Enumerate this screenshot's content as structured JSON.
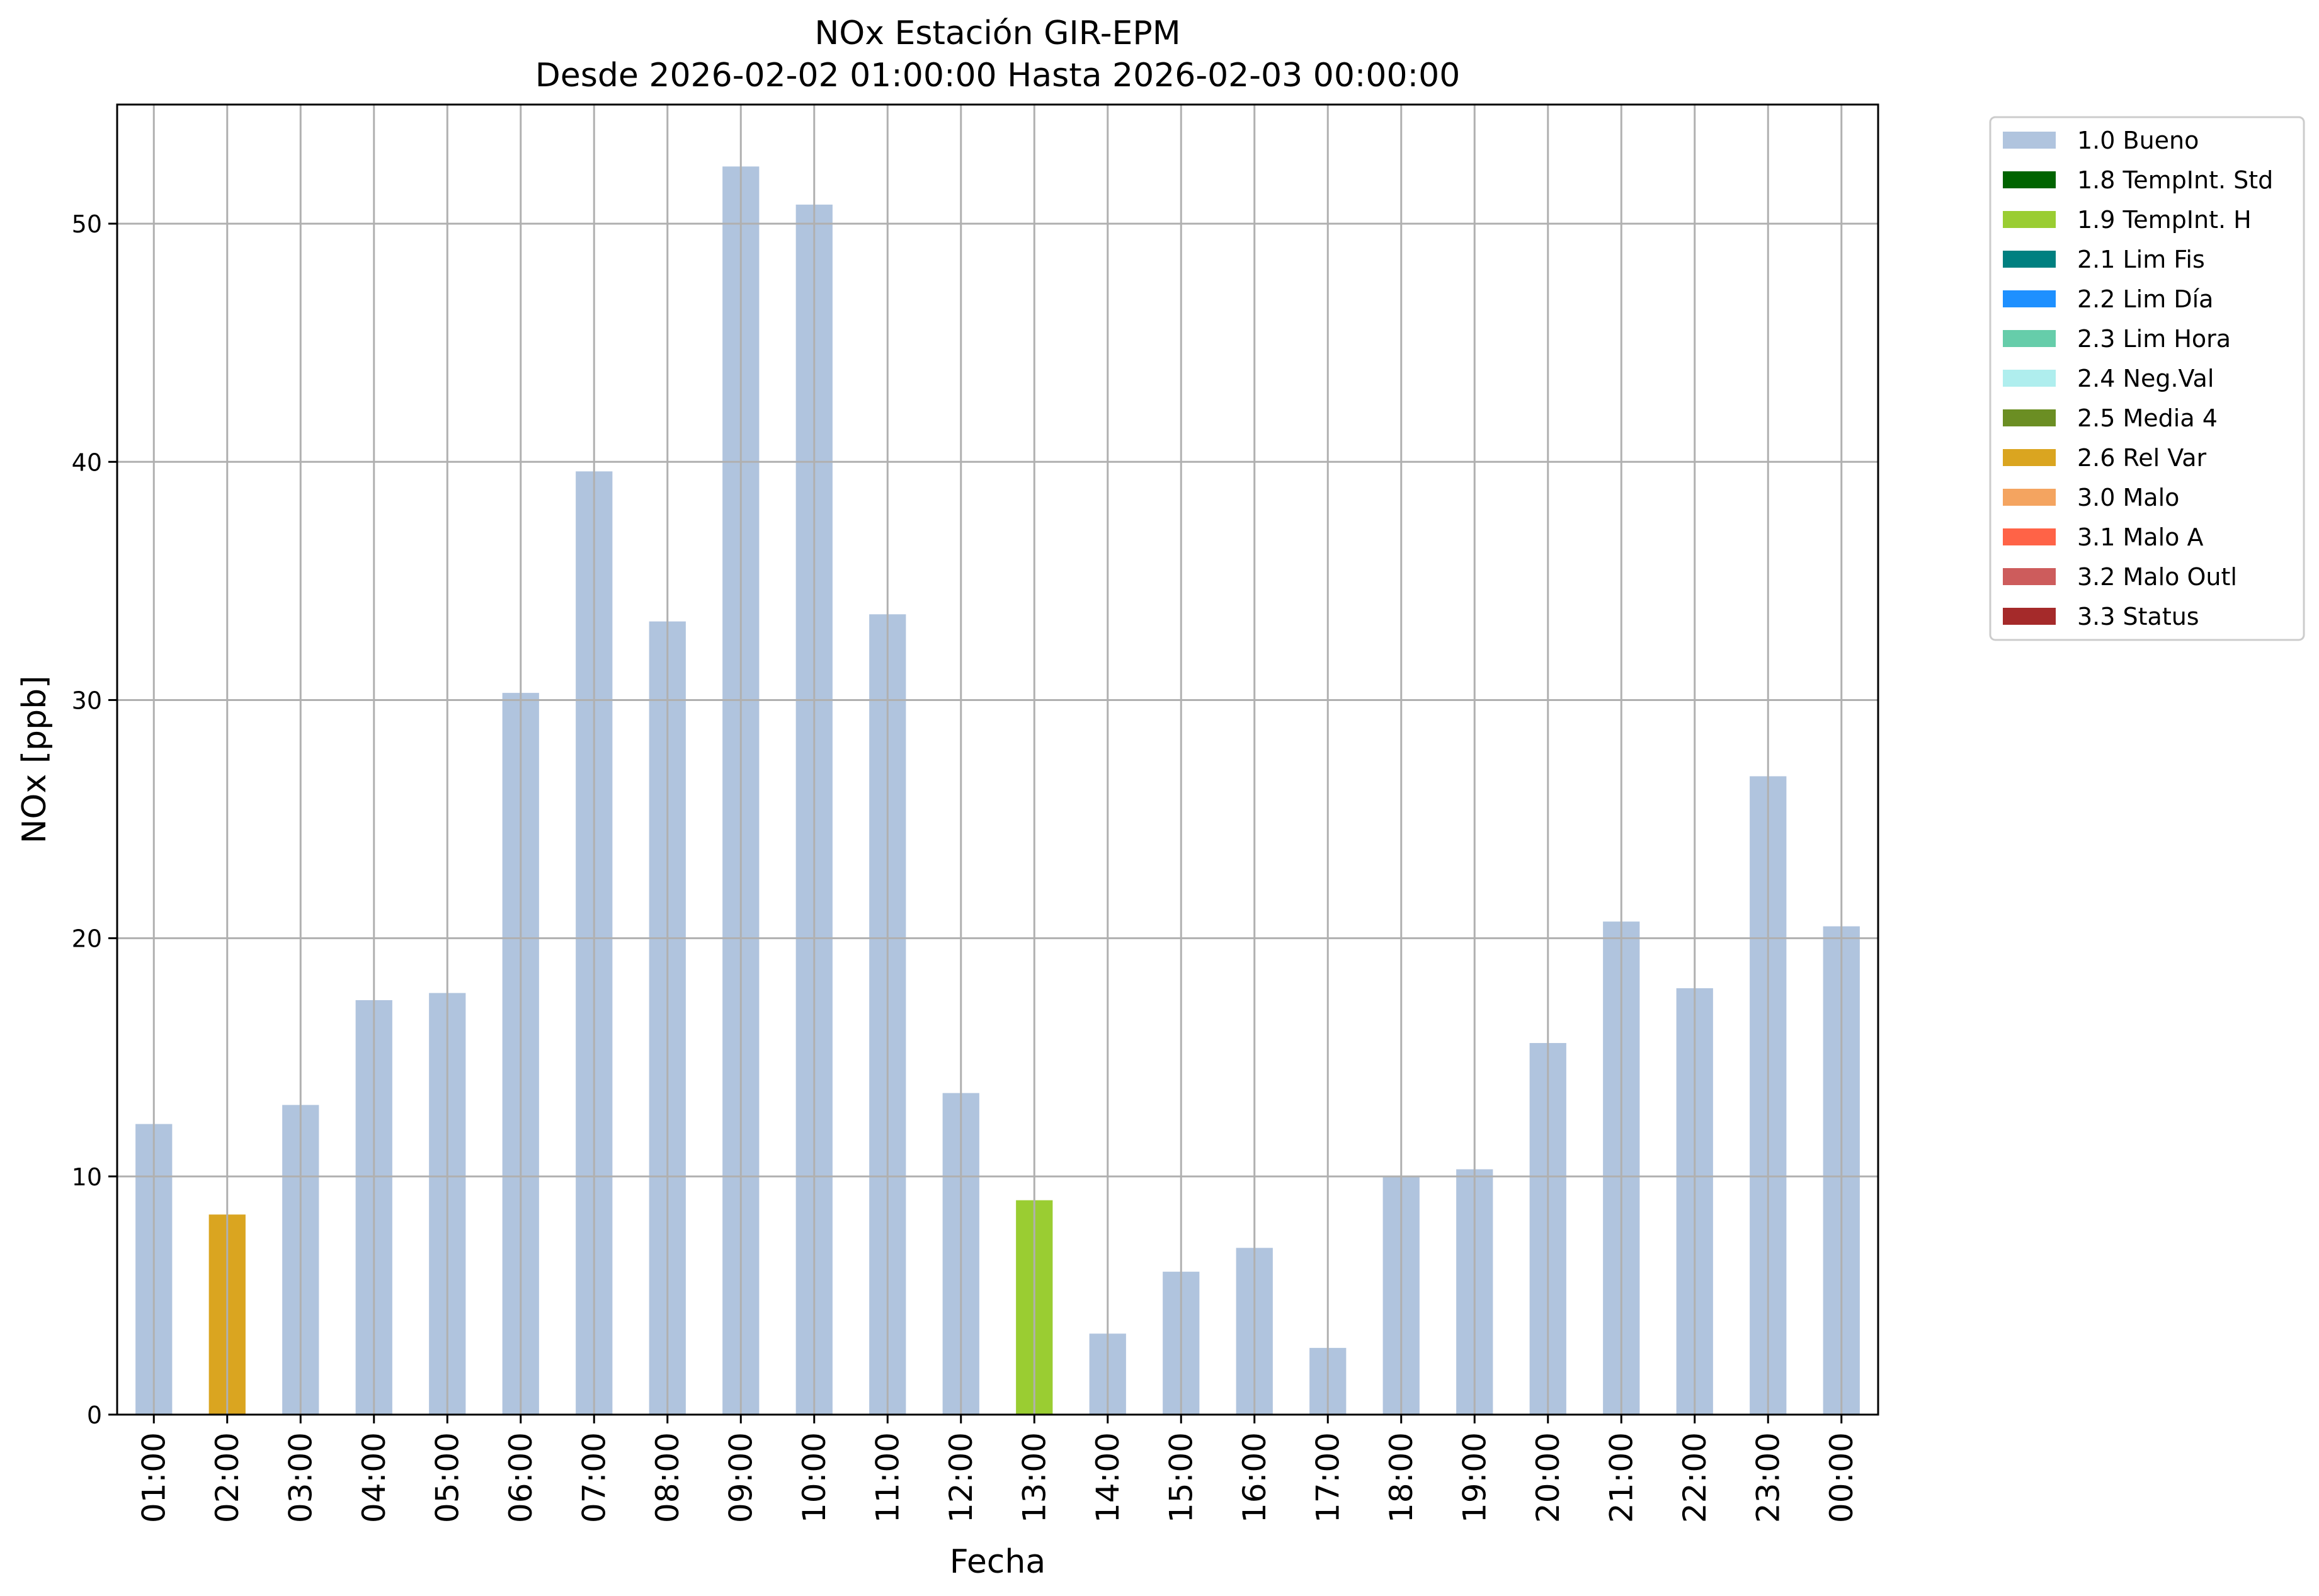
{
  "chart_data": {
    "type": "bar",
    "title": "NOx Estación GIR-EPM",
    "subtitle": "Desde 2026-02-02 01:00:00 Hasta 2026-02-03 00:00:00",
    "xlabel": "Fecha",
    "ylabel": "NOx [ppb]",
    "ylim": [
      0,
      55
    ],
    "yticks": [
      "0",
      "10",
      "20",
      "30",
      "40",
      "50"
    ],
    "grid": true,
    "legend_position": "outside-top-right",
    "categories": [
      "01:00",
      "02:00",
      "03:00",
      "04:00",
      "05:00",
      "06:00",
      "07:00",
      "08:00",
      "09:00",
      "10:00",
      "11:00",
      "12:00",
      "13:00",
      "14:00",
      "15:00",
      "16:00",
      "17:00",
      "18:00",
      "19:00",
      "20:00",
      "21:00",
      "22:00",
      "23:00",
      "00:00"
    ],
    "values": [
      12.2,
      8.4,
      13.0,
      17.4,
      17.7,
      30.3,
      39.6,
      33.3,
      52.4,
      50.8,
      33.6,
      13.5,
      9.0,
      3.4,
      6.0,
      7.0,
      2.8,
      10.0,
      10.3,
      15.6,
      20.7,
      17.9,
      26.8,
      20.5
    ],
    "flags": [
      "1.0 Bueno",
      "2.6 Rel Var",
      "1.0 Bueno",
      "1.0 Bueno",
      "1.0 Bueno",
      "1.0 Bueno",
      "1.0 Bueno",
      "1.0 Bueno",
      "1.0 Bueno",
      "1.0 Bueno",
      "1.0 Bueno",
      "1.0 Bueno",
      "1.9 TempInt. H",
      "1.0 Bueno",
      "1.0 Bueno",
      "1.0 Bueno",
      "1.0 Bueno",
      "1.0 Bueno",
      "1.0 Bueno",
      "1.0 Bueno",
      "1.0 Bueno",
      "1.0 Bueno",
      "1.0 Bueno",
      "1.0 Bueno"
    ],
    "legend": [
      {
        "label": "1.0 Bueno",
        "color": "#b0c4de"
      },
      {
        "label": "1.8 TempInt. Std",
        "color": "#006400"
      },
      {
        "label": "1.9 TempInt. H",
        "color": "#9acd32"
      },
      {
        "label": "2.1 Lim Fis",
        "color": "#008080"
      },
      {
        "label": "2.2 Lim Día",
        "color": "#1e90ff"
      },
      {
        "label": "2.3 Lim Hora",
        "color": "#66cdaa"
      },
      {
        "label": "2.4 Neg.Val",
        "color": "#afeeee"
      },
      {
        "label": "2.5 Media 4",
        "color": "#6b8e23"
      },
      {
        "label": "2.6 Rel Var",
        "color": "#daa520"
      },
      {
        "label": "3.0 Malo",
        "color": "#f4a460"
      },
      {
        "label": "3.1 Malo A",
        "color": "#ff6347"
      },
      {
        "label": "3.2 Malo Outl",
        "color": "#cd5c5c"
      },
      {
        "label": "3.3 Status",
        "color": "#a52a2a"
      }
    ]
  }
}
